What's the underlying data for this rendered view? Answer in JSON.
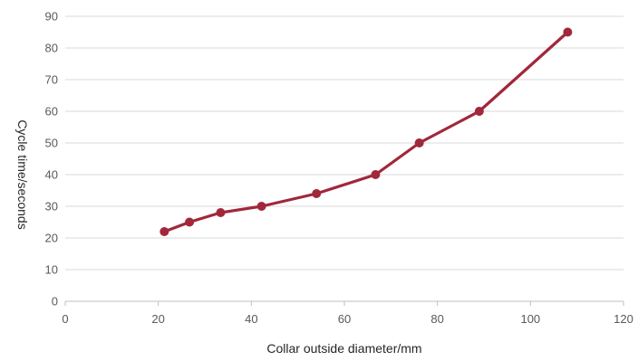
{
  "chart_data": {
    "type": "line",
    "title": "",
    "xlabel": "Collar outside diameter/mm",
    "ylabel": "Cycle time/seconds",
    "xlim": [
      0,
      120
    ],
    "ylim": [
      0,
      90
    ],
    "x_ticks": [
      0,
      20,
      40,
      60,
      80,
      100,
      120
    ],
    "y_ticks": [
      0,
      10,
      20,
      30,
      40,
      50,
      60,
      70,
      80,
      90
    ],
    "grid": "horizontal",
    "series": [
      {
        "name": "",
        "color": "#a0283a",
        "x": [
          21.3,
          26.7,
          33.4,
          42.2,
          54,
          66.7,
          76.1,
          89,
          108
        ],
        "y": [
          22,
          25,
          28,
          30,
          34,
          40,
          50,
          60,
          85
        ]
      }
    ]
  }
}
